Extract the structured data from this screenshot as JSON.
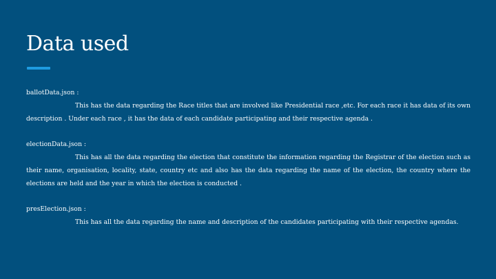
{
  "slide": {
    "title": "Data used",
    "accent_color": "#1e9be0",
    "background_color": "#02507e",
    "sections": [
      {
        "file": "ballotData.json :",
        "description": "This has the data regarding the Race titles that are involved like Presidential race ,etc. For each race it has data of its own description . Under each race , it has the data of each candidate participating and their respective agenda ."
      },
      {
        "file": "electionData.json :",
        "description": "This has all the data regarding the election that constitute the information regarding the Registrar of the election such as their name, organisation, locality, state, country etc and also has the data regarding the name of the election, the country where the elections are held and the year in which the election is conducted ."
      },
      {
        "file": "presElection.json :",
        "description": "This has all the data regarding the name and description of the candidates participating with their respective agendas."
      }
    ]
  }
}
